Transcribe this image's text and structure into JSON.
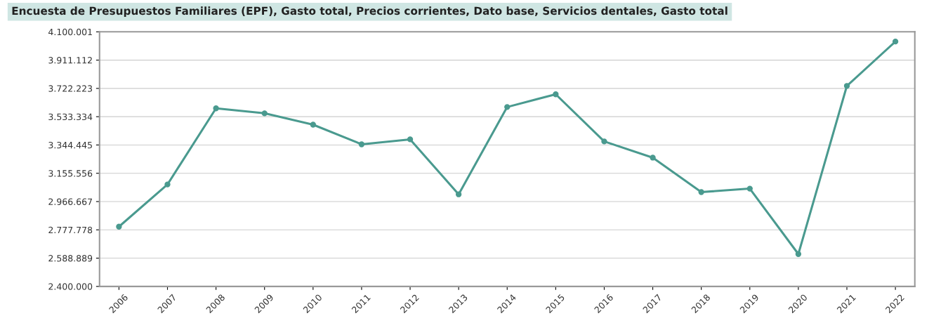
{
  "chart_data": {
    "type": "line",
    "title": "Encuesta de Presupuestos Familiares (EPF), Gasto total, Precios corrientes, Dato base, Servicios dentales, Gasto total",
    "categories": [
      "2006",
      "2007",
      "2008",
      "2009",
      "2010",
      "2011",
      "2012",
      "2013",
      "2014",
      "2015",
      "2016",
      "2017",
      "2018",
      "2019",
      "2020",
      "2021",
      "2022"
    ],
    "series": [
      {
        "color": "#4a9a8f",
        "values": [
          2799000,
          3081000,
          3589000,
          3556000,
          3480000,
          3349000,
          3382000,
          3015000,
          3598000,
          3683000,
          3368000,
          3260000,
          3030000,
          3053000,
          2616000,
          3739000,
          4035000
        ]
      }
    ],
    "ylim": [
      2400000,
      4100001
    ],
    "yticks": [
      {
        "value": 2400000,
        "label": "2.400.000"
      },
      {
        "value": 2588889,
        "label": "2.588.889"
      },
      {
        "value": 2777778,
        "label": "2.777.778"
      },
      {
        "value": 2966667,
        "label": "2.966.667"
      },
      {
        "value": 3155556,
        "label": "3.155.556"
      },
      {
        "value": 3344445,
        "label": "3.344.445"
      },
      {
        "value": 3533334,
        "label": "3.533.334"
      },
      {
        "value": 3722223,
        "label": "3.722.223"
      },
      {
        "value": 3911112,
        "label": "3.911.112"
      },
      {
        "value": 4100001,
        "label": "4.100.001"
      }
    ],
    "grid": "y",
    "marker": "circle",
    "line_style": "solid"
  }
}
